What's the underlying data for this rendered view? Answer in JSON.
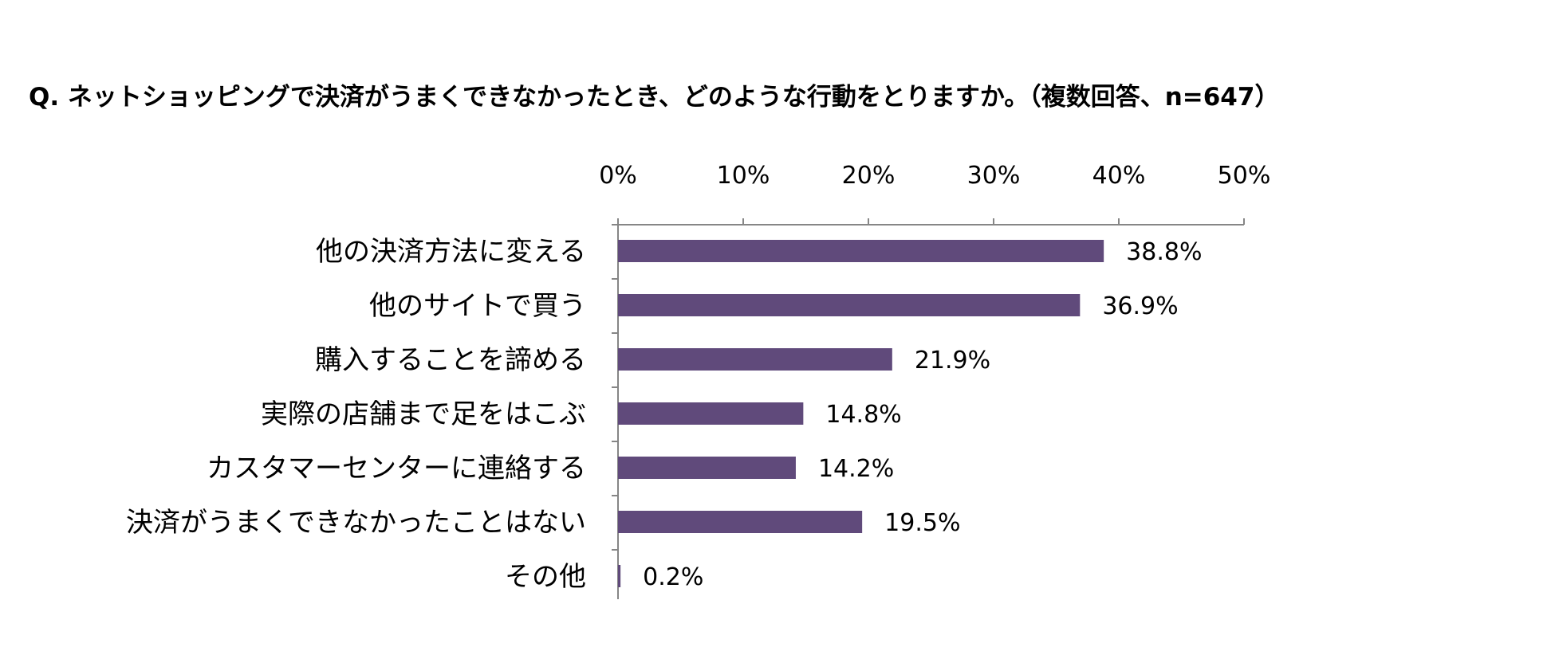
{
  "chart_data": {
    "type": "bar",
    "orientation": "horizontal",
    "title": "Q. ネットショッピングで決済がうまくできなかったとき、どのような行動をとりますか。（複数回答、n=647）",
    "xlabel": "",
    "ylabel": "",
    "xlim": [
      0,
      50
    ],
    "ticks": [
      0,
      10,
      20,
      30,
      40,
      50
    ],
    "tick_labels": [
      "0%",
      "10%",
      "20%",
      "30%",
      "40%",
      "50%"
    ],
    "axis_position": "top",
    "grid": false,
    "legend": "none",
    "bar_color": "#604a7b",
    "axis_color": "#868686",
    "categories": [
      "他の決済方法に変える",
      "他のサイトで買う",
      "購入することを諦める",
      "実際の店舗まで足をはこぶ",
      "カスタマーセンターに連絡する",
      "決済がうまくできなかったことはない",
      "その他"
    ],
    "values": [
      38.8,
      36.9,
      21.9,
      14.8,
      14.2,
      19.5,
      0.2
    ],
    "value_labels": [
      "38.8%",
      "36.9%",
      "21.9%",
      "14.8%",
      "14.2%",
      "19.5%",
      "0.2%"
    ]
  }
}
